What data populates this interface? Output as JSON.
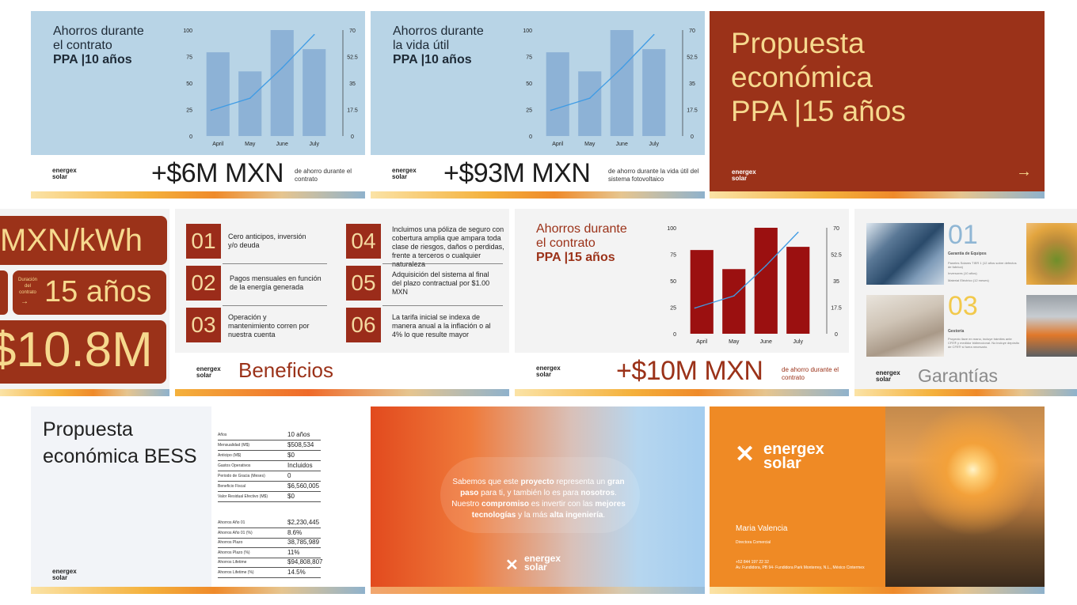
{
  "slide1": {
    "title_lines": [
      "Ahorros durante",
      "el contrato"
    ],
    "title_bold": "PPA |10 años",
    "amount": "+$6M MXN",
    "caption": "de ahorro durante el contrato"
  },
  "slide2": {
    "title_lines": [
      "Ahorros durante",
      "la vida útil"
    ],
    "title_bold": "PPA |10 años",
    "amount": "+$93M MXN",
    "caption": "de ahorro durante la vida útil del sistema fotovoltaico"
  },
  "slide3": {
    "title_lines": [
      "Propuesta",
      "económica",
      "PPA |15 años"
    ],
    "arrow": "→"
  },
  "slide4": {
    "rate": "MXN/kWh",
    "duration_label": "Duración del contrato",
    "arrow": "→",
    "duration_value": "15 años",
    "total": "$10.8M"
  },
  "slide5": {
    "items": [
      {
        "num": "01",
        "text": "Cero anticipos, inversión y/o deuda"
      },
      {
        "num": "02",
        "text": "Pagos mensuales en función de la energía generada"
      },
      {
        "num": "03",
        "text": "Operación y mantenimiento corren por nuestra cuenta"
      },
      {
        "num": "04",
        "text": "Incluimos una póliza de seguro con cobertura amplia que ampara toda clase de riesgos, daños o perdidas, frente a terceros o cualquier naturaleza"
      },
      {
        "num": "05",
        "text": "Adquisición del sistema al final del plazo contractual por $1.00 MXN"
      },
      {
        "num": "06",
        "text": "La tarifa inicial se indexa de manera anual a la inflación o al 4% lo que resulte mayor"
      }
    ],
    "heading": "Beneficios"
  },
  "slide6": {
    "title_lines": [
      "Ahorros durante",
      "el contrato"
    ],
    "title_bold": "PPA |15 años",
    "amount": "+$10M MXN",
    "caption": "de ahorro durante el contrato"
  },
  "slide7": {
    "num1": "01",
    "head1": "Garantía de Equipos",
    "body1": "Paneles Solares TIER 1 (12 años sobre defectos de fabrica)",
    "body1b": "Inversores (10 años)",
    "body1c": "Material Eléctrico (12 meses)",
    "num2": "03",
    "head2": "Gestoría",
    "body2": "Proyecto llave en mano, incluye trámites ante CFE® y medidor bidireccional. No incluye depósito de CFE® si fuera necesario.",
    "heading": "Garantías"
  },
  "slide8": {
    "title_lines": [
      "Propuesta",
      "económica BESS"
    ],
    "table1": [
      {
        "label": "Años",
        "value": "10 años"
      },
      {
        "label": "Mensualidad (M$)",
        "value": "$508,534"
      },
      {
        "label": "Anticipo (M$)",
        "value": "$0"
      },
      {
        "label": "Gastos Operativos",
        "value": "Incluidos"
      },
      {
        "label": "Periodo de Gracia (Meses)",
        "value": "0"
      },
      {
        "label": "Beneficio Fiscal",
        "value": "$6,560,005"
      },
      {
        "label": "Valor Residual Efectivo (M$)",
        "value": "$0"
      }
    ],
    "table2": [
      {
        "label": "Ahorros Año 01",
        "value": "$2,230,445"
      },
      {
        "label": "Ahorros Año 01 (%)",
        "value": "8.6%"
      },
      {
        "label": "Ahorros Plazo",
        "value": "38,785,989"
      },
      {
        "label": "Ahorros Plazo (%)",
        "value": "11%"
      },
      {
        "label": "Ahorros Lifetime",
        "value": "$94,808,807"
      },
      {
        "label": "Ahorros Lifetime (%)",
        "value": "14.5%"
      }
    ]
  },
  "slide9": {
    "p1": "Sabemos que este ",
    "p1b": "proyecto",
    "p2": " representa un ",
    "p2b": "gran paso",
    "p3": " para ti, y también lo es para ",
    "p3b": "nosotros",
    "p4": ". Nuestro ",
    "p4b": "compromiso",
    "p5": " es invertir con las ",
    "p5b": "mejores tecnologías",
    "p6": " y la más ",
    "p6b": "alta ingeniería",
    "p7": "."
  },
  "slide10": {
    "name": "Maria Valencia",
    "role": "Directora Comercial",
    "phone": "+52 844 197 22 32",
    "address": "Av. Fundidora, PB 94- Fundidora Park Monterrey, N.L., México Cintermex"
  },
  "logo": {
    "line1": "energex",
    "line2": "solar"
  },
  "colors": {
    "red": "#9b2c1a",
    "orange": "#ef8a25",
    "lightblue": "#b8d4e6",
    "cream": "#f4d9a0"
  },
  "chart_data": [
    {
      "type": "bar",
      "categories": [
        "April",
        "May",
        "June",
        "July"
      ],
      "values": [
        79,
        61,
        100,
        82
      ],
      "line_values": [
        17,
        25,
        45,
        67
      ],
      "ylim": [
        0,
        100
      ],
      "y_ticks": [
        "0",
        "25",
        "50",
        "75",
        "100"
      ],
      "y2lim": [
        0,
        70
      ],
      "y2_ticks": [
        "0",
        "17.5",
        "35",
        "52.5",
        "70"
      ]
    },
    {
      "type": "bar",
      "categories": [
        "April",
        "May",
        "June",
        "July"
      ],
      "values": [
        79,
        61,
        100,
        82
      ],
      "line_values": [
        17,
        25,
        45,
        67
      ],
      "ylim": [
        0,
        100
      ],
      "y_ticks": [
        "0",
        "25",
        "50",
        "75",
        "100"
      ],
      "y2lim": [
        0,
        70
      ],
      "y2_ticks": [
        "0",
        "17.5",
        "35",
        "52.5",
        "70"
      ]
    },
    {
      "type": "bar",
      "categories": [
        "April",
        "May",
        "June",
        "July"
      ],
      "values": [
        79,
        61,
        100,
        82
      ],
      "line_values": [
        17,
        25,
        45,
        67
      ],
      "ylim": [
        0,
        100
      ],
      "y_ticks": [
        "0",
        "25",
        "50",
        "75",
        "100"
      ],
      "y2lim": [
        0,
        70
      ],
      "y2_ticks": [
        "0",
        "17.5",
        "35",
        "52.5",
        "70"
      ]
    }
  ]
}
